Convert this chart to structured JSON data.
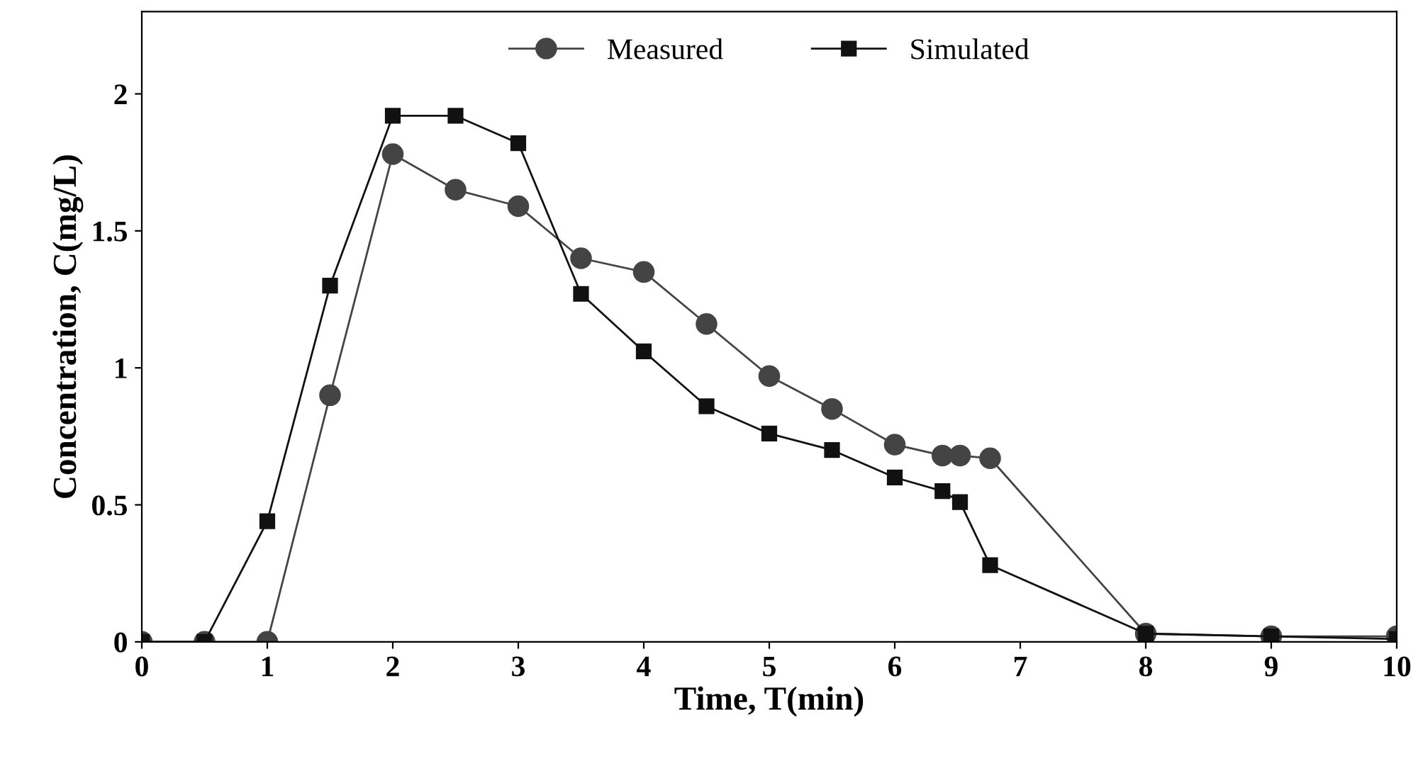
{
  "chart_data": {
    "type": "line",
    "xlabel": "Time, T(min)",
    "ylabel": "Concentration, C(mg/L)",
    "xlim": [
      0,
      10
    ],
    "ylim": [
      0,
      2.3
    ],
    "xticks": [
      0,
      1,
      2,
      3,
      4,
      5,
      6,
      7,
      8,
      9,
      10
    ],
    "yticks": [
      0,
      0.5,
      1,
      1.5,
      2
    ],
    "grid": false,
    "legend": "top",
    "series": [
      {
        "name": "Measured",
        "color": "#444444",
        "marker": "circle",
        "x": [
          0,
          0.5,
          1,
          1.5,
          2,
          2.5,
          3,
          3.5,
          4,
          4.5,
          5,
          5.5,
          6,
          6.38,
          6.52,
          6.76,
          8,
          9,
          10
        ],
        "values": [
          0,
          0,
          0,
          0.9,
          1.78,
          1.65,
          1.59,
          1.4,
          1.35,
          1.16,
          0.97,
          0.85,
          0.72,
          0.68,
          0.68,
          0.67,
          0.03,
          0.02,
          0.02
        ]
      },
      {
        "name": "Simulated",
        "color": "#111111",
        "marker": "square",
        "x": [
          0,
          0.5,
          1,
          1.5,
          2,
          2.5,
          3,
          3.5,
          4,
          4.5,
          5,
          5.5,
          6,
          6.38,
          6.52,
          6.76,
          8,
          9,
          10
        ],
        "values": [
          0,
          0,
          0.44,
          1.3,
          1.92,
          1.92,
          1.82,
          1.27,
          1.06,
          0.86,
          0.76,
          0.7,
          0.6,
          0.55,
          0.51,
          0.28,
          0.03,
          0.02,
          0.01
        ]
      }
    ]
  }
}
